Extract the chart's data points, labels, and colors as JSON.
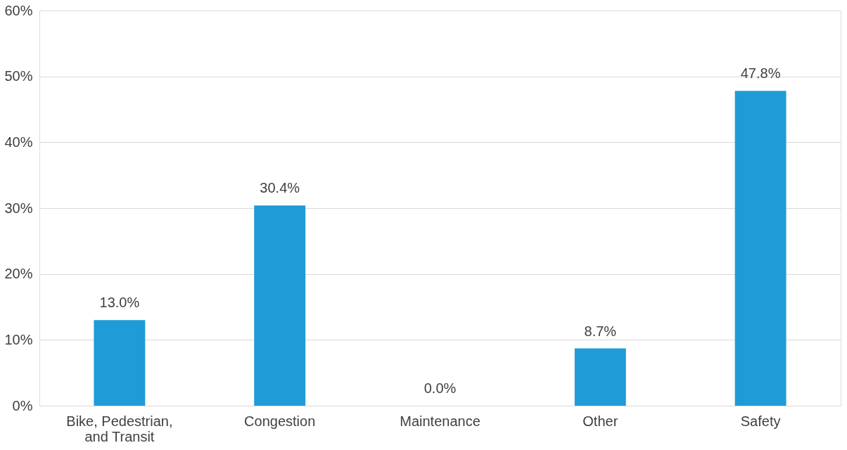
{
  "chart_data": {
    "type": "bar",
    "categories": [
      "Bike, Pedestrian, and Transit",
      "Congestion",
      "Maintenance",
      "Other",
      "Safety"
    ],
    "values": [
      13.0,
      30.4,
      0.0,
      8.7,
      47.8
    ],
    "value_labels": [
      "13.0%",
      "30.4%",
      "0.0%",
      "8.7%",
      "47.8%"
    ],
    "color": "#1f9bd7",
    "ylim": [
      0,
      60
    ],
    "yticks": [
      {
        "value": 0,
        "label": "0%"
      },
      {
        "value": 10,
        "label": "10%"
      },
      {
        "value": 20,
        "label": "20%"
      },
      {
        "value": 30,
        "label": "30%"
      },
      {
        "value": 40,
        "label": "40%"
      },
      {
        "value": 50,
        "label": "50%"
      },
      {
        "value": 60,
        "label": "60%"
      }
    ],
    "grid": "y"
  }
}
